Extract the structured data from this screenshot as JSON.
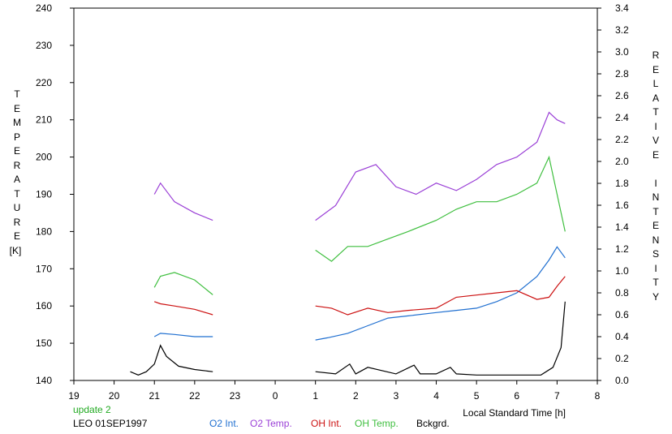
{
  "chart_data": {
    "type": "line",
    "y_left_label": "TEMPERATURE",
    "y_left_unit": "[K]",
    "y_right_label": "RELATIVE INTENSITY",
    "x_label": "Local Standard Time [h]",
    "update_note": "update 2",
    "station_date": "LEO 01SEP1997",
    "x_ticks": [
      "19",
      "20",
      "21",
      "22",
      "23",
      "0",
      "1",
      "2",
      "3",
      "4",
      "5",
      "6",
      "7",
      "8"
    ],
    "y_left_ticks": [
      "140",
      "150",
      "160",
      "170",
      "180",
      "190",
      "200",
      "210",
      "220",
      "230",
      "240"
    ],
    "y_right_ticks": [
      "0.0",
      "0.2",
      "0.4",
      "0.6",
      "0.8",
      "1.0",
      "1.2",
      "1.4",
      "1.6",
      "1.8",
      "2.0",
      "2.2",
      "2.4",
      "2.6",
      "2.8",
      "3.0",
      "3.2",
      "3.4"
    ],
    "x_range_hours_after_19": [
      0,
      13
    ],
    "y_left_range": [
      140,
      240
    ],
    "y_right_range": [
      0,
      3.4
    ],
    "grid": false,
    "legend_position": "bottom",
    "series": [
      {
        "name": "O2 Int.",
        "axis": "right",
        "color": "#1f6fd0",
        "points": [
          [
            2.0,
            0.4
          ],
          [
            2.15,
            0.43
          ],
          [
            2.5,
            0.42
          ],
          [
            3.0,
            0.4
          ],
          [
            3.45,
            0.4
          ],
          [
            6.0,
            0.37
          ],
          [
            6.3,
            0.39
          ],
          [
            6.8,
            0.43
          ],
          [
            7.3,
            0.5
          ],
          [
            7.8,
            0.57
          ],
          [
            8.3,
            0.59
          ],
          [
            9.0,
            0.62
          ],
          [
            9.5,
            0.64
          ],
          [
            10.0,
            0.66
          ],
          [
            10.5,
            0.72
          ],
          [
            11.0,
            0.8
          ],
          [
            11.5,
            0.95
          ],
          [
            11.8,
            1.1
          ],
          [
            12.0,
            1.22
          ],
          [
            12.2,
            1.12
          ]
        ]
      },
      {
        "name": "O2 Temp.",
        "axis": "left",
        "color": "#9a3fd6",
        "points": [
          [
            2.0,
            190
          ],
          [
            2.15,
            193
          ],
          [
            2.5,
            188
          ],
          [
            3.0,
            185
          ],
          [
            3.45,
            183
          ],
          [
            6.0,
            183
          ],
          [
            6.5,
            187
          ],
          [
            7.0,
            196
          ],
          [
            7.5,
            198
          ],
          [
            8.0,
            192
          ],
          [
            8.5,
            190
          ],
          [
            9.0,
            193
          ],
          [
            9.5,
            191
          ],
          [
            10.0,
            194
          ],
          [
            10.5,
            198
          ],
          [
            11.0,
            200
          ],
          [
            11.5,
            204
          ],
          [
            11.8,
            212
          ],
          [
            12.0,
            210
          ],
          [
            12.2,
            209
          ]
        ]
      },
      {
        "name": "OH Int.",
        "axis": "right",
        "color": "#cc1111",
        "points": [
          [
            2.0,
            0.72
          ],
          [
            2.15,
            0.7
          ],
          [
            2.5,
            0.68
          ],
          [
            3.0,
            0.65
          ],
          [
            3.45,
            0.6
          ],
          [
            6.0,
            0.68
          ],
          [
            6.4,
            0.66
          ],
          [
            6.8,
            0.6
          ],
          [
            7.3,
            0.66
          ],
          [
            7.8,
            0.62
          ],
          [
            8.3,
            0.64
          ],
          [
            9.0,
            0.66
          ],
          [
            9.5,
            0.76
          ],
          [
            10.0,
            0.78
          ],
          [
            10.5,
            0.8
          ],
          [
            11.0,
            0.82
          ],
          [
            11.5,
            0.74
          ],
          [
            11.8,
            0.76
          ],
          [
            12.0,
            0.86
          ],
          [
            12.2,
            0.95
          ]
        ]
      },
      {
        "name": "OH Temp.",
        "axis": "left",
        "color": "#3fbf3f",
        "points": [
          [
            2.0,
            165
          ],
          [
            2.15,
            168
          ],
          [
            2.5,
            169
          ],
          [
            3.0,
            167
          ],
          [
            3.45,
            163
          ],
          [
            6.0,
            175
          ],
          [
            6.4,
            172
          ],
          [
            6.8,
            176
          ],
          [
            7.3,
            176
          ],
          [
            7.8,
            178
          ],
          [
            8.3,
            180
          ],
          [
            9.0,
            183
          ],
          [
            9.5,
            186
          ],
          [
            10.0,
            188
          ],
          [
            10.5,
            188
          ],
          [
            11.0,
            190
          ],
          [
            11.5,
            193
          ],
          [
            11.8,
            200
          ],
          [
            12.0,
            190
          ],
          [
            12.2,
            180
          ]
        ]
      },
      {
        "name": "Bckgrd.",
        "axis": "right",
        "color": "#000000",
        "points": [
          [
            1.4,
            0.08
          ],
          [
            1.6,
            0.05
          ],
          [
            1.8,
            0.08
          ],
          [
            2.0,
            0.15
          ],
          [
            2.15,
            0.32
          ],
          [
            2.3,
            0.22
          ],
          [
            2.6,
            0.13
          ],
          [
            3.0,
            0.1
          ],
          [
            3.45,
            0.08
          ],
          [
            6.0,
            0.08
          ],
          [
            6.5,
            0.06
          ],
          [
            6.85,
            0.15
          ],
          [
            7.0,
            0.06
          ],
          [
            7.3,
            0.12
          ],
          [
            8.0,
            0.06
          ],
          [
            8.45,
            0.14
          ],
          [
            8.6,
            0.06
          ],
          [
            9.0,
            0.06
          ],
          [
            9.35,
            0.12
          ],
          [
            9.5,
            0.06
          ],
          [
            10.0,
            0.05
          ],
          [
            10.5,
            0.05
          ],
          [
            11.0,
            0.05
          ],
          [
            11.6,
            0.05
          ],
          [
            11.9,
            0.12
          ],
          [
            12.1,
            0.3
          ],
          [
            12.2,
            0.72
          ]
        ]
      }
    ]
  }
}
